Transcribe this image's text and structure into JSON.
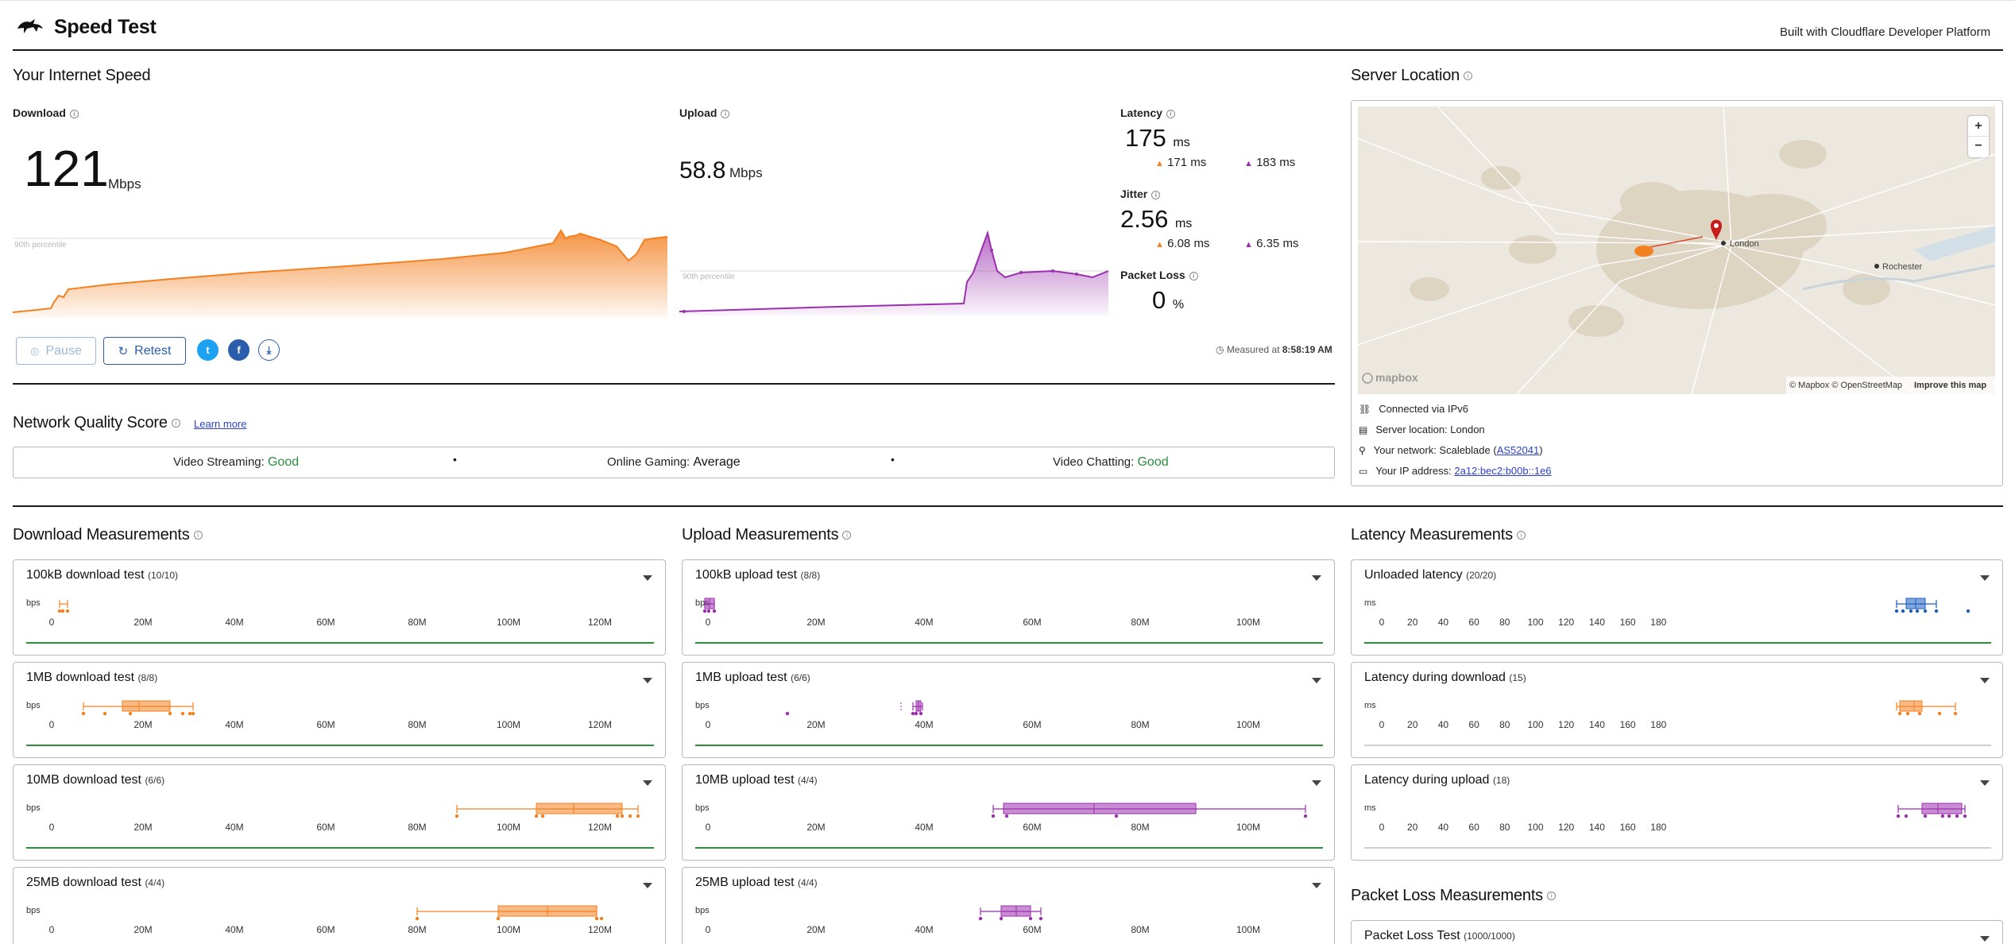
{
  "header": {
    "title": "Speed Test",
    "built_with": "Built with Cloudflare Developer Platform"
  },
  "speed": {
    "section_title": "Your Internet Speed",
    "download": {
      "label": "Download",
      "value": "121",
      "unit": "Mbps",
      "percentile_label": "90th percentile"
    },
    "upload": {
      "label": "Upload",
      "value": "58.8",
      "unit": "Mbps",
      "percentile_label": "90th percentile"
    },
    "latency": {
      "label": "Latency",
      "value": "175",
      "unit": "ms",
      "down": "171",
      "up": "183",
      "sub_unit": "ms"
    },
    "jitter": {
      "label": "Jitter",
      "value": "2.56",
      "unit": "ms",
      "down": "6.08",
      "up": "6.35",
      "sub_unit": "ms"
    },
    "packet_loss": {
      "label": "Packet Loss",
      "value": "0",
      "unit": "%"
    },
    "pause_label": "Pause",
    "retest_label": "Retest",
    "measured_prefix": "Measured at",
    "measured_time": "8:58:19 AM"
  },
  "server": {
    "section_title": "Server Location",
    "map_city1": "London",
    "map_city2": "Rochester",
    "map_attribution": "© Mapbox © OpenStreetMap",
    "map_improve": "Improve this map",
    "mapbox_logo": "mapbox",
    "connected": "Connected via IPv6",
    "location_prefix": "Server location: ",
    "location": "London",
    "network_prefix": "Your network: Scaleblade (",
    "network_asn": "AS52041",
    "network_suffix": ")",
    "ip_prefix": "Your IP address: ",
    "ip": "2a12:bec2:b00b::1e6"
  },
  "nqs": {
    "title": "Network Quality Score",
    "learn_more": "Learn more",
    "items": [
      {
        "label": "Video Streaming:",
        "value": "Good"
      },
      {
        "label": "Online Gaming:",
        "value": "Average"
      },
      {
        "label": "Video Chatting:",
        "value": "Good"
      }
    ]
  },
  "measurements": {
    "download_title": "Download Measurements",
    "upload_title": "Upload Measurements",
    "latency_title": "Latency Measurements",
    "packet_title": "Packet Loss Measurements",
    "download_cards": [
      {
        "title": "100kB download test",
        "count": "(10/10)"
      },
      {
        "title": "1MB download test",
        "count": "(8/8)"
      },
      {
        "title": "10MB download test",
        "count": "(6/6)"
      },
      {
        "title": "25MB download test",
        "count": "(4/4)"
      }
    ],
    "upload_cards": [
      {
        "title": "100kB upload test",
        "count": "(8/8)"
      },
      {
        "title": "1MB upload test",
        "count": "(6/6)"
      },
      {
        "title": "10MB upload test",
        "count": "(4/4)"
      },
      {
        "title": "25MB upload test",
        "count": "(4/4)"
      }
    ],
    "latency_cards": [
      {
        "title": "Unloaded latency",
        "count": "(20/20)"
      },
      {
        "title": "Latency during download",
        "count": "(15)"
      },
      {
        "title": "Latency during upload",
        "count": "(18)"
      }
    ],
    "packet_cards": [
      {
        "title": "Packet Loss Test",
        "count": "(1000/1000)"
      }
    ],
    "bps_unit": "bps",
    "ms_unit": "ms",
    "dl_ticks": [
      "0",
      "20M",
      "40M",
      "60M",
      "80M",
      "100M",
      "120M"
    ],
    "ul_ticks": [
      "0",
      "20M",
      "40M",
      "60M",
      "80M",
      "100M"
    ],
    "lat_ticks": [
      "0",
      "20",
      "40",
      "60",
      "80",
      "100",
      "120",
      "140",
      "160",
      "180"
    ]
  },
  "colors": {
    "download": "#f38020",
    "upload": "#9b2fae",
    "latency": "#1d5fbf",
    "good": "#2c8c3c",
    "link": "#2a5dab"
  }
}
